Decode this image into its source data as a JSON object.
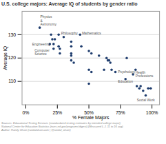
{
  "chart_data": {
    "type": "scatter",
    "title": "U.S. college majors: Average IQ of students by gender ratio",
    "xlabel": "% Female Majors",
    "ylabel": "Average IQ",
    "caption": "Sources: Educational Testing Services (standardized testing estimates by intended college major);\nNational Center for Education Statistics (nces.ed.gov/programs/digest) (Measured L.J. 11 to 16 avg)\nAuthor: Randy Olson (randalolson.com | @randal_olson)",
    "color": "#1f3d6e",
    "x": [
      0.11,
      0.2,
      0.26,
      0.43,
      0.21,
      0.23,
      0.19,
      0.22,
      0.26,
      0.22,
      0.3,
      0.27,
      0.27,
      0.36,
      0.36,
      0.36,
      0.36,
      0.36,
      0.38,
      0.44,
      0.5,
      0.52,
      0.5,
      0.52,
      0.5,
      0.58,
      0.62,
      0.64,
      0.65,
      0.66,
      0.67,
      0.68,
      0.71,
      0.8,
      0.79,
      0.85,
      0.87,
      0.88,
      0.9,
      0.91,
      0.93,
      0.95,
      0.97,
      0.99
    ],
    "y": [
      133,
      130,
      130,
      130,
      128,
      128,
      126,
      126,
      125,
      124,
      129,
      124,
      122,
      127,
      125,
      122,
      121,
      119,
      118,
      125,
      123,
      122,
      115,
      114,
      109,
      121,
      115,
      120,
      119,
      119,
      118,
      115,
      114,
      120,
      111,
      113,
      115,
      108,
      107,
      108,
      106,
      104,
      107,
      107
    ],
    "annotations": [
      {
        "text": "Physics\n&\nAstronomy",
        "x": 0.115,
        "y": 136
      },
      {
        "text": "Philosophy",
        "x": 0.28,
        "y": 130.5
      },
      {
        "text": "Mathematics",
        "x": 0.445,
        "y": 130.5
      },
      {
        "text": "Engineering",
        "x": 0.05,
        "y": 126
      },
      {
        "text": "Computer\nScience",
        "x": 0.07,
        "y": 122.5
      },
      {
        "text": "Psychology",
        "x": 0.73,
        "y": 114
      },
      {
        "text": "Education",
        "x": 0.73,
        "y": 110
      },
      {
        "text": "Health\nProfessions",
        "x": 0.87,
        "y": 113
      },
      {
        "text": "Social Work",
        "x": 0.88,
        "y": 102
      }
    ],
    "xlim": [
      -0.03,
      1.06
    ],
    "ylim": [
      100,
      140
    ],
    "xticks": [
      {
        "value": 0,
        "label": "0%"
      },
      {
        "value": 0.25,
        "label": "25%"
      },
      {
        "value": 0.5,
        "label": "50%"
      },
      {
        "value": 0.75,
        "label": "75%"
      },
      {
        "value": 1.0,
        "label": "100%"
      }
    ],
    "yticks": [
      110,
      120,
      130
    ],
    "grid": true
  }
}
